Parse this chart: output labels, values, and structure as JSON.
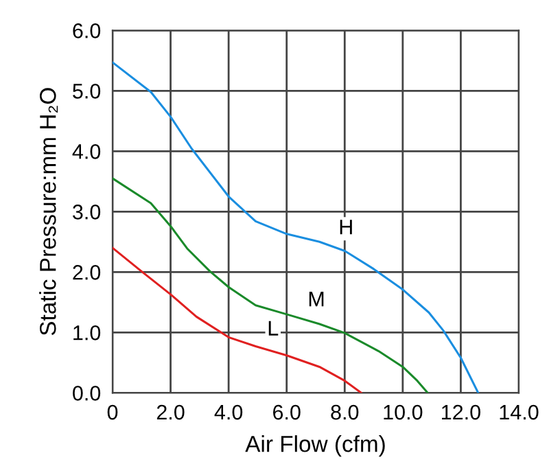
{
  "chart_data": {
    "type": "line",
    "xlabel": "Air Flow (cfm)",
    "ylabel": "Static Pressure:mm H₂O",
    "xlim": [
      0,
      14
    ],
    "ylim": [
      0,
      6
    ],
    "xticks": [
      {
        "value": 0,
        "label": "0"
      },
      {
        "value": 2,
        "label": "2.0"
      },
      {
        "value": 4,
        "label": "4.0"
      },
      {
        "value": 6,
        "label": "6.0"
      },
      {
        "value": 8,
        "label": "8.0"
      },
      {
        "value": 10,
        "label": "10.0"
      },
      {
        "value": 12,
        "label": "12.0"
      },
      {
        "value": 14,
        "label": "14.0"
      }
    ],
    "yticks": [
      {
        "value": 0,
        "label": "0.0"
      },
      {
        "value": 1,
        "label": "1.0"
      },
      {
        "value": 2,
        "label": "2.0"
      },
      {
        "value": 3,
        "label": "3.0"
      },
      {
        "value": 4,
        "label": "4.0"
      },
      {
        "value": 5,
        "label": "5.0"
      },
      {
        "value": 6,
        "label": "6.0"
      }
    ],
    "grid": true,
    "marker": "none",
    "line_style": "solid",
    "legend": false,
    "series": [
      {
        "name": "H",
        "color": "#1a8ee0",
        "x": [
          0,
          1.32,
          2,
          2.73,
          4,
          4.93,
          6,
          7.13,
          8,
          9,
          10,
          10.9,
          11.4,
          12,
          12.6
        ],
        "values": [
          5.47,
          4.98,
          4.57,
          4.04,
          3.25,
          2.84,
          2.63,
          2.5,
          2.35,
          2.05,
          1.71,
          1.33,
          1.03,
          0.58,
          0
        ]
      },
      {
        "name": "M",
        "color": "#1a8a2a",
        "x": [
          0,
          1.32,
          2,
          2.57,
          3.36,
          4,
          4.93,
          6,
          7.13,
          8,
          9.17,
          10,
          10.5,
          10.86
        ],
        "values": [
          3.55,
          3.14,
          2.76,
          2.39,
          2.01,
          1.75,
          1.45,
          1.3,
          1.14,
          0.99,
          0.69,
          0.43,
          0.2,
          0
        ]
      },
      {
        "name": "L",
        "color": "#e02020",
        "x": [
          0,
          1,
          2,
          2.89,
          4,
          4.93,
          6,
          7.13,
          8,
          8.57
        ],
        "values": [
          2.4,
          2.01,
          1.63,
          1.26,
          0.92,
          0.77,
          0.62,
          0.43,
          0.2,
          0
        ]
      }
    ]
  }
}
